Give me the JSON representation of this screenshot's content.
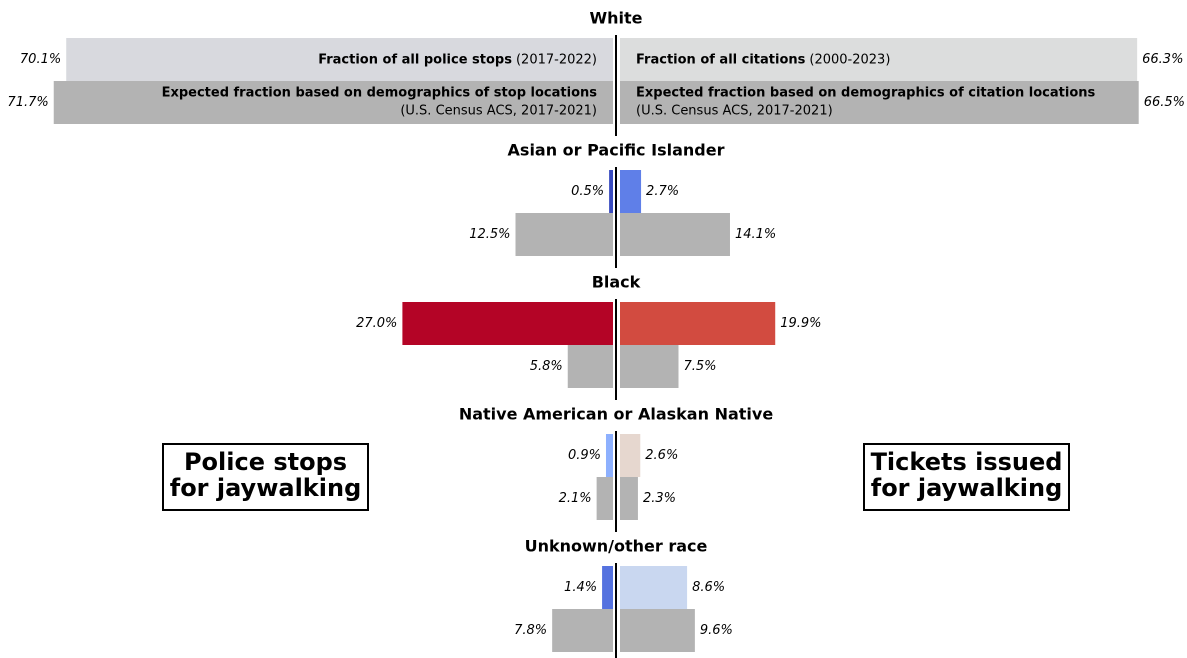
{
  "chart_data": {
    "type": "butterfly",
    "categories": [
      "White",
      "Asian or Pacific Islander",
      "Black",
      "Native American or Alaskan Native",
      "Unknown/other race"
    ],
    "left_title": [
      "Police stops",
      "for jaywalking"
    ],
    "right_title": [
      "Tickets issued",
      "for jaywalking"
    ],
    "xlim": [
      0,
      80
    ],
    "series": [
      {
        "name": "Fraction of all police stops",
        "source": "(2017-2022)",
        "side": "left",
        "colors": [
          "#d8d9de",
          "#3b4cc0",
          "#b40426",
          "#8db0fe",
          "#5572df"
        ],
        "values": [
          70.1,
          0.5,
          27.0,
          0.9,
          1.4
        ],
        "value_labels": [
          "70.1%",
          "0.5%",
          "27.0%",
          "0.9%",
          "1.4%"
        ]
      },
      {
        "name": "Expected fraction based on demographics of stop locations",
        "source": "(U.S. Census ACS, 2017-2021)",
        "side": "left",
        "color": "#b3b3b3",
        "values": [
          71.7,
          12.5,
          5.8,
          2.1,
          7.8
        ],
        "value_labels": [
          "71.7%",
          "12.5%",
          "5.8%",
          "2.1%",
          "7.8%"
        ]
      },
      {
        "name": "Fraction of all citations",
        "source": "(2000-2023)",
        "side": "right",
        "colors": [
          "#dcdddd",
          "#5f7fe8",
          "#d24b40",
          "#e6d7cf",
          "#c9d7f0"
        ],
        "values": [
          66.3,
          2.7,
          19.9,
          2.6,
          8.6
        ],
        "value_labels": [
          "66.3%",
          "2.7%",
          "19.9%",
          "2.6%",
          "8.6%"
        ]
      },
      {
        "name": "Expected fraction based on demographics of citation locations",
        "source": "(U.S. Census ACS, 2017-2021)",
        "side": "right",
        "color": "#b3b3b3",
        "values": [
          66.5,
          14.1,
          7.5,
          2.3,
          9.6
        ],
        "value_labels": [
          "66.5%",
          "14.1%",
          "7.5%",
          "2.3%",
          "9.6%"
        ]
      }
    ]
  }
}
